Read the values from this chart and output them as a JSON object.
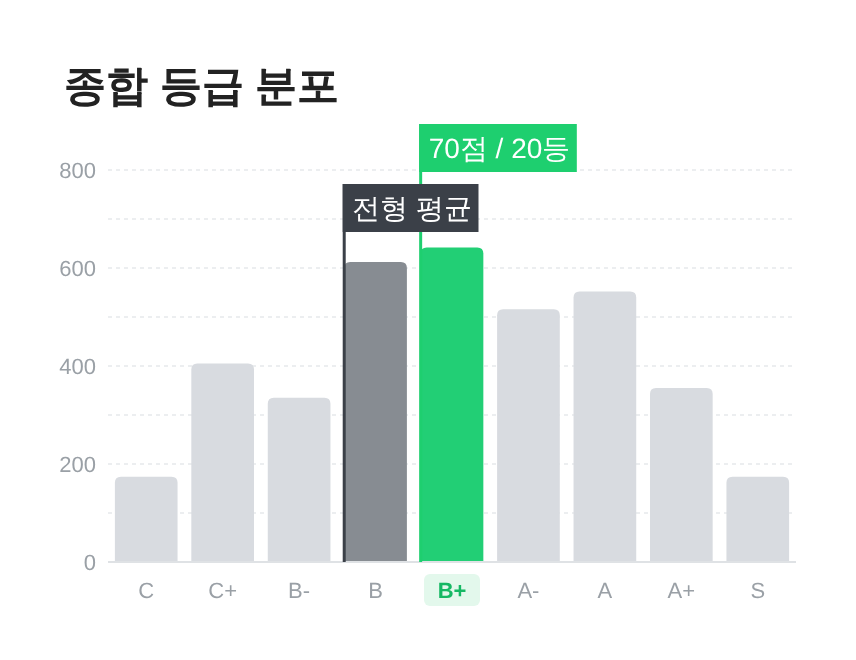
{
  "chart_data": {
    "type": "bar",
    "title": "종합 등급 분포",
    "categories": [
      "C",
      "C+",
      "B-",
      "B",
      "B+",
      "A-",
      "A",
      "A+",
      "S"
    ],
    "values": [
      174,
      405,
      335,
      612,
      642,
      516,
      552,
      355,
      174
    ],
    "colors": [
      "#d8dbe0",
      "#d8dbe0",
      "#d8dbe0",
      "#878c92",
      "#22cf75",
      "#d8dbe0",
      "#d8dbe0",
      "#d8dbe0",
      "#d8dbe0"
    ],
    "ylim": [
      0,
      800
    ],
    "yticks": [
      0,
      {
        "value": 100,
        "label": null
      },
      200,
      {
        "value": 300,
        "label": null
      },
      400,
      {
        "value": 500,
        "label": null
      },
      600,
      {
        "value": 700,
        "label": null
      },
      800
    ],
    "grid": "y",
    "ref_lines": [
      {
        "axis": "x",
        "value": "B",
        "label": "전형 평균",
        "color": "#3b4048"
      },
      {
        "axis": "x",
        "value": "B+",
        "label": "70점 / 20등",
        "color": "#1ecf6f"
      }
    ]
  }
}
